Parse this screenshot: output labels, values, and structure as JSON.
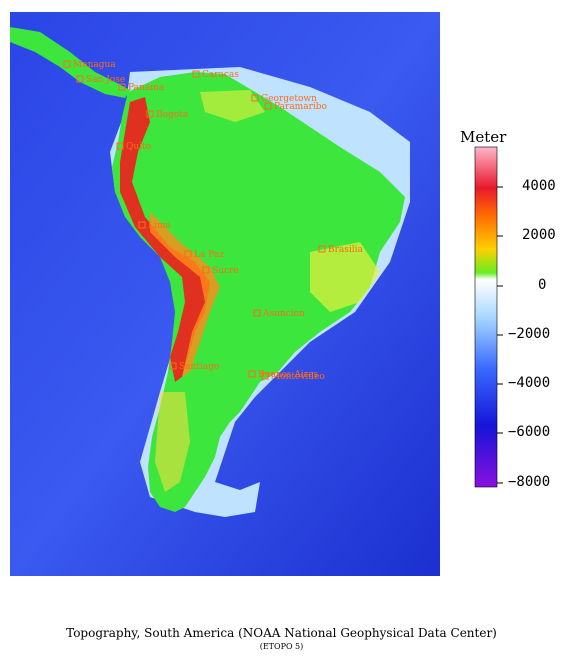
{
  "caption": "Topography, South America  (NOAA National Geophysical Data Center)",
  "subcaption": "(ETOPO 5)",
  "legend": {
    "title": "Meter",
    "ticks": [
      "4000",
      "2000",
      "0",
      "−2000",
      "−4000",
      "−6000",
      "−8000"
    ],
    "scale_colors": [
      "#ffb6c8",
      "#e8192c",
      "#ff6a00",
      "#ffd000",
      "#66ee22",
      "#ffffff",
      "#a8d8ff",
      "#3a6aff",
      "#1515d8",
      "#8a10e0"
    ]
  },
  "colors": {
    "ocean_deep": "#1c2fd0",
    "ocean": "#3a5af0",
    "shelf": "#cfeaff",
    "lowland": "#3ce63c",
    "highland": "#f0e040",
    "andes": "#e03020",
    "label": "#ff6a1a"
  },
  "cities": [
    {
      "name": "Managua"
    },
    {
      "name": "San Jose"
    },
    {
      "name": "Panama"
    },
    {
      "name": "Caracas"
    },
    {
      "name": "Georgetown"
    },
    {
      "name": "Paramaribo"
    },
    {
      "name": "Bogota"
    },
    {
      "name": "Quito"
    },
    {
      "name": "Lima"
    },
    {
      "name": "La Paz"
    },
    {
      "name": "Sucre"
    },
    {
      "name": "Brasilia"
    },
    {
      "name": "Asuncion"
    },
    {
      "name": "Santiago"
    },
    {
      "name": "Buenos Aires"
    },
    {
      "name": "Montevideo"
    }
  ]
}
